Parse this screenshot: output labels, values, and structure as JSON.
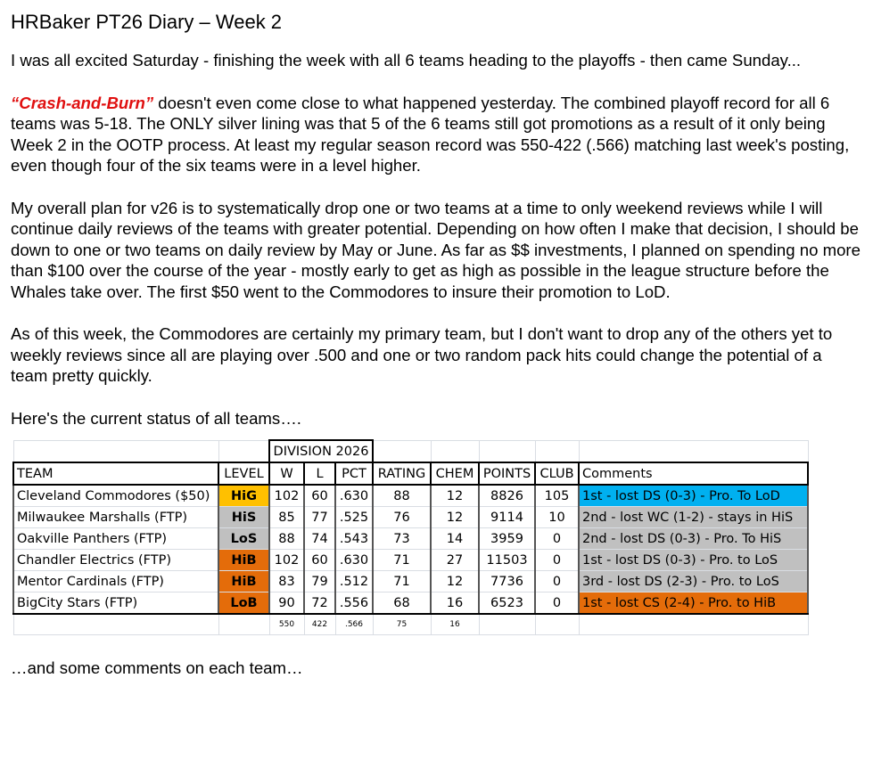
{
  "title": "HRBaker PT26 Diary – Week 2",
  "paragraphs": {
    "p1": "I was all excited Saturday - finishing the week with all 6 teams heading to the playoffs - then came Sunday...",
    "p2_emph": "“Crash-and-Burn”",
    "p2_rest": " doesn't even come close to what happened yesterday. The combined playoff record for all 6 teams was 5-18. The ONLY silver lining was that 5 of the 6 teams still got promotions as a result of it only being Week 2 in the OOTP process. At least my regular season record was 550-422 (.566) matching last week's posting, even though four of the six teams were in a level higher.",
    "p3": "My overall plan for v26 is to systematically drop one or two teams at a time to only weekend reviews while I will continue daily reviews of the teams with greater potential. Depending on how often I make that decision, I should be down to one or two teams on daily review by May or June. As far as $$ investments, I planned on spending no more than $100 over the course of the year - mostly early to get as high as possible in the league structure before the Whales take over. The first $50 went to the Commodores to insure their promotion to LoD.",
    "p4": "As of this week, the Commodores are certainly my primary team, but I don't want to drop any of the others yet to weekly reviews since all are playing over .500 and one or two random pack hits could change the potential of a team pretty quickly.",
    "p5": "Here's the current status of all teams….",
    "closing": "…and some comments on each team…"
  },
  "table": {
    "group_header": "DIVISION 2026",
    "columns": [
      "TEAM",
      "LEVEL",
      "W",
      "L",
      "PCT",
      "RATING",
      "CHEM",
      "POINTS",
      "CLUB",
      "Comments"
    ],
    "rows": [
      {
        "team": "Cleveland Commodores ($50)",
        "level": "HiG",
        "level_color": "#ffc000",
        "w": "102",
        "l": "60",
        "pct": ".630",
        "rating": "88",
        "chem": "12",
        "points": "8826",
        "club": "105",
        "comment": "1st - lost DS (0-3) - Pro. To LoD",
        "comment_color": "#00b0f0"
      },
      {
        "team": "Milwaukee Marshalls (FTP)",
        "level": "HiS",
        "level_color": "#c0c0c0",
        "w": "85",
        "l": "77",
        "pct": ".525",
        "rating": "76",
        "chem": "12",
        "points": "9114",
        "club": "10",
        "comment": "2nd - lost WC (1-2) - stays in HiS",
        "comment_color": "#c0c0c0"
      },
      {
        "team": "Oakville Panthers (FTP)",
        "level": "LoS",
        "level_color": "#c0c0c0",
        "w": "88",
        "l": "74",
        "pct": ".543",
        "rating": "73",
        "chem": "14",
        "points": "3959",
        "club": "0",
        "comment": "2nd - lost DS (0-3) - Pro. To HiS",
        "comment_color": "#c0c0c0"
      },
      {
        "team": "Chandler Electrics (FTP)",
        "level": "HiB",
        "level_color": "#e46c0a",
        "w": "102",
        "l": "60",
        "pct": ".630",
        "rating": "71",
        "chem": "27",
        "points": "11503",
        "club": "0",
        "comment": "1st - lost DS (0-3) - Pro. to LoS",
        "comment_color": "#c0c0c0"
      },
      {
        "team": "Mentor Cardinals (FTP)",
        "level": "HiB",
        "level_color": "#e46c0a",
        "w": "83",
        "l": "79",
        "pct": ".512",
        "rating": "71",
        "chem": "12",
        "points": "7736",
        "club": "0",
        "comment": "3rd - lost DS (2-3) - Pro. to LoS",
        "comment_color": "#c0c0c0"
      },
      {
        "team": "BigCity Stars (FTP)",
        "level": "LoB",
        "level_color": "#e46c0a",
        "w": "90",
        "l": "72",
        "pct": ".556",
        "rating": "68",
        "chem": "16",
        "points": "6523",
        "club": "0",
        "comment": "1st - lost CS (2-4) - Pro. to HiB",
        "comment_color": "#e46c0a"
      }
    ],
    "totals": {
      "w": "550",
      "l": "422",
      "pct": ".566",
      "rating": "75",
      "chem": "16"
    }
  }
}
